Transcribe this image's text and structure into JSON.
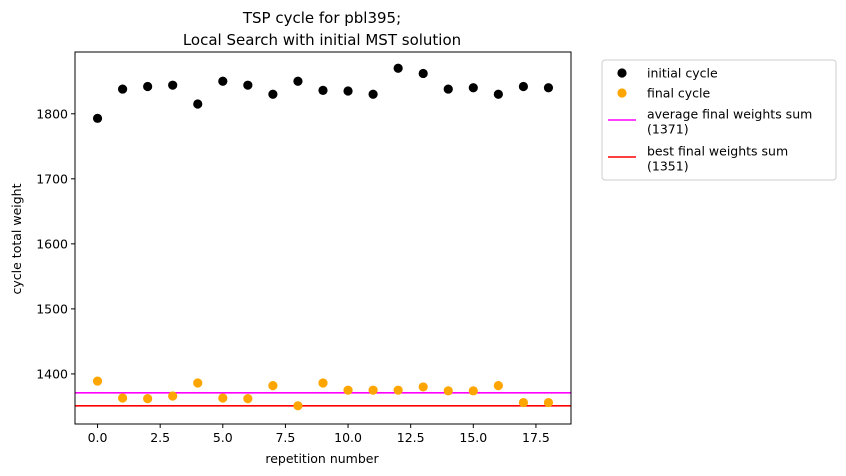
{
  "chart_data": {
    "type": "scatter",
    "title": [
      "TSP cycle for pbl395;",
      "Local Search with initial MST solution"
    ],
    "xlabel": "repetition number",
    "ylabel": "cycle total weight",
    "xlim": [
      -0.9,
      18.9
    ],
    "ylim": [
      1323,
      1895
    ],
    "xticks": [
      0.0,
      2.5,
      5.0,
      7.5,
      10.0,
      12.5,
      15.0,
      17.5
    ],
    "xtick_labels": [
      "0.0",
      "2.5",
      "5.0",
      "7.5",
      "10.0",
      "12.5",
      "15.0",
      "17.5"
    ],
    "yticks": [
      1400,
      1500,
      1600,
      1700,
      1800
    ],
    "ytick_labels": [
      "1400",
      "1500",
      "1600",
      "1700",
      "1800"
    ],
    "grid": false,
    "legend_position": "outside-right-top",
    "series": [
      {
        "name": "initial cycle",
        "kind": "scatter",
        "color": "#000000",
        "x": [
          0,
          1,
          2,
          3,
          4,
          5,
          6,
          7,
          8,
          9,
          10,
          11,
          12,
          13,
          14,
          15,
          16,
          17,
          18
        ],
        "y": [
          1793,
          1838,
          1842,
          1844,
          1815,
          1850,
          1844,
          1830,
          1850,
          1836,
          1835,
          1830,
          1870,
          1862,
          1838,
          1840,
          1830,
          1842,
          1840
        ]
      },
      {
        "name": "final cycle",
        "kind": "scatter",
        "color": "#ffa500",
        "x": [
          0,
          1,
          2,
          3,
          4,
          5,
          6,
          7,
          8,
          9,
          10,
          11,
          12,
          13,
          14,
          15,
          16,
          17,
          18
        ],
        "y": [
          1389,
          1363,
          1362,
          1366,
          1386,
          1363,
          1362,
          1382,
          1351,
          1386,
          1375,
          1375,
          1375,
          1380,
          1374,
          1374,
          1382,
          1356,
          1356
        ]
      },
      {
        "name": "average final weights sum\n(1371)",
        "kind": "hline",
        "color": "#ff00ff",
        "y": 1371
      },
      {
        "name": "best final weights sum\n(1351)",
        "kind": "hline",
        "color": "#ff0000",
        "y": 1351
      }
    ]
  }
}
